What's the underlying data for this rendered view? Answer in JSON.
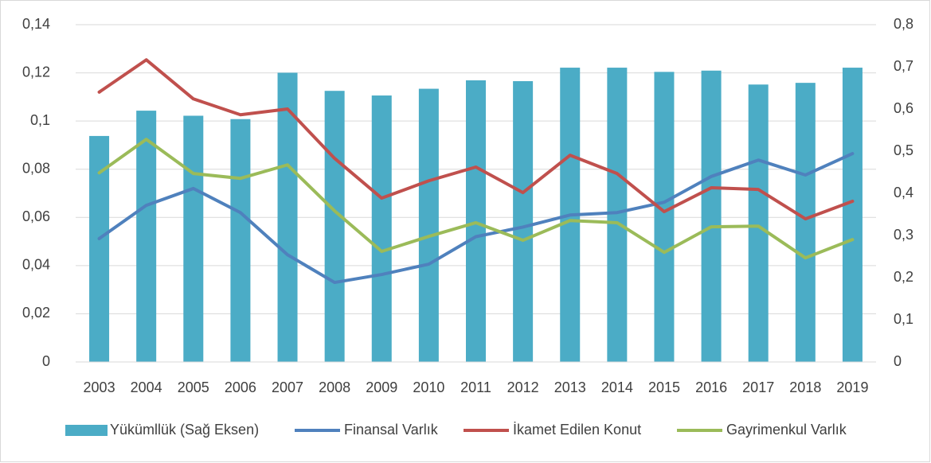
{
  "chart_data": {
    "type": "bar_line",
    "categories": [
      "2003",
      "2004",
      "2005",
      "2006",
      "2007",
      "2008",
      "2009",
      "2010",
      "2011",
      "2012",
      "2013",
      "2014",
      "2015",
      "2016",
      "2017",
      "2018",
      "2019"
    ],
    "series": [
      {
        "name": "Yükümllük (Sağ Eksen)",
        "type": "bar",
        "axis": "y2",
        "color": "#4bacc6",
        "values": [
          0.536,
          0.596,
          0.584,
          0.576,
          0.686,
          0.643,
          0.632,
          0.648,
          0.668,
          0.666,
          0.698,
          0.698,
          0.688,
          0.691,
          0.658,
          0.662,
          0.698
        ]
      },
      {
        "name": "Finansal Varlık",
        "type": "line",
        "color": "#4f81bd",
        "values": [
          0.0512,
          0.065,
          0.072,
          0.062,
          0.0445,
          0.033,
          0.0363,
          0.0406,
          0.052,
          0.056,
          0.061,
          0.062,
          0.0663,
          0.077,
          0.0838,
          0.0776,
          0.0865
        ]
      },
      {
        "name": "İkamet Edilen Konut",
        "type": "line",
        "color": "#c0504d",
        "values": [
          0.112,
          0.1254,
          0.1092,
          0.1026,
          0.105,
          0.0845,
          0.068,
          0.0752,
          0.0809,
          0.0703,
          0.0858,
          0.0782,
          0.0624,
          0.0723,
          0.0716,
          0.0594,
          0.0667
        ]
      },
      {
        "name": "Gayrimenkul Varlık",
        "type": "line",
        "color": "#9bbb59",
        "values": [
          0.0785,
          0.0924,
          0.0782,
          0.0762,
          0.0818,
          0.0627,
          0.0459,
          0.0521,
          0.0578,
          0.0505,
          0.0587,
          0.0578,
          0.0455,
          0.0561,
          0.0564,
          0.0432,
          0.0508
        ]
      }
    ],
    "ylim": [
      0,
      0.14
    ],
    "yticks": [
      0,
      {
        "value": 0.02,
        "label": "0,02"
      },
      {
        "value": 0.04,
        "label": "0,04"
      },
      {
        "value": 0.06,
        "label": "0,06"
      },
      {
        "value": 0.08,
        "label": "0,08"
      },
      {
        "value": 0.1,
        "label": "0,1"
      },
      {
        "value": 0.12,
        "label": "0,12"
      },
      {
        "value": 0.14,
        "label": "0,14"
      }
    ],
    "y2lim": [
      0,
      0.8
    ],
    "y2ticks": [
      0,
      {
        "value": 0.1,
        "label": "0,1"
      },
      {
        "value": 0.2,
        "label": "0,2"
      },
      {
        "value": 0.3,
        "label": "0,3"
      },
      {
        "value": 0.4,
        "label": "0,4"
      },
      {
        "value": 0.5,
        "label": "0,5"
      },
      {
        "value": 0.6,
        "label": "0,6"
      },
      {
        "value": 0.7,
        "label": "0,7"
      },
      {
        "value": 0.8,
        "label": "0,8"
      }
    ],
    "grid": true,
    "legend": "bottom"
  }
}
